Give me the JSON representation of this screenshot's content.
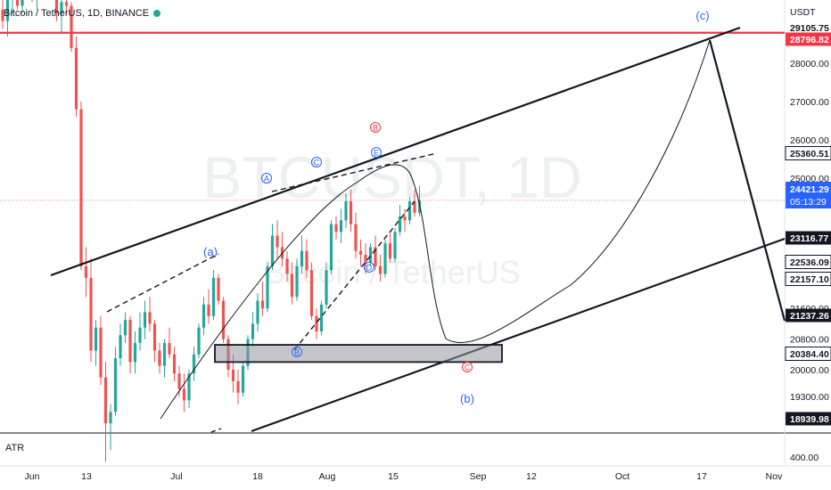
{
  "title": {
    "symbol": "Bitcoin / TetherUS",
    "interval": "1D",
    "exchange": "BINANCE"
  },
  "watermark": {
    "ticker": "BTCUSDT, 1D",
    "name": "Bitcoin / TetherUS"
  },
  "colors": {
    "up": "#26a69a",
    "down": "#ef5350",
    "resistance": "#f23645",
    "wave_blue": "#2962ff",
    "wave_red": "#f23645"
  },
  "chart_data": {
    "type": "candlestick",
    "price_axis": {
      "unit": "USDT",
      "ticks": [
        28000,
        27000,
        26000,
        25000,
        21600,
        20800,
        20000,
        19300
      ],
      "ylim": [
        18939.98,
        29105.75
      ]
    },
    "time_axis": {
      "labels": [
        "Jun",
        "13",
        "Jul",
        "18",
        "Aug",
        "15",
        "Sep",
        "12",
        "Oct",
        "17",
        "Nov"
      ]
    },
    "price_tags": [
      {
        "value": "29105.75",
        "style": "plain"
      },
      {
        "value": "28796.82",
        "style": "red"
      },
      {
        "value": "25360.51",
        "style": "light"
      },
      {
        "value": "24421.29",
        "style": "blue",
        "sub": "05:13:29"
      },
      {
        "value": "23116.77",
        "style": "dark"
      },
      {
        "value": "22536.09",
        "style": "light"
      },
      {
        "value": "22157.10",
        "style": "light"
      },
      {
        "value": "21237.26",
        "style": "dark"
      },
      {
        "value": "20384.40",
        "style": "light"
      },
      {
        "value": "18939.98",
        "style": "dark"
      }
    ],
    "indicator": {
      "name": "ATR",
      "tick": "400.00"
    },
    "wave_labels": [
      {
        "text": "(c)",
        "color": "blue"
      },
      {
        "text": "(a)",
        "color": "blue"
      },
      {
        "text": "(b)",
        "color": "blue"
      },
      {
        "text": "A",
        "color": "blue",
        "circled": true
      },
      {
        "text": "C",
        "color": "blue",
        "circled": true
      },
      {
        "text": "E",
        "color": "blue",
        "circled": true
      },
      {
        "text": "B",
        "color": "red",
        "circled": true
      },
      {
        "text": "B",
        "color": "blue",
        "circled": true
      },
      {
        "text": "D",
        "color": "blue",
        "circled": true
      },
      {
        "text": "C",
        "color": "red",
        "circled": true
      }
    ],
    "resistance_level": 28796.82,
    "last_price": 24421.29,
    "support_zone": [
      20200,
      20650
    ]
  }
}
